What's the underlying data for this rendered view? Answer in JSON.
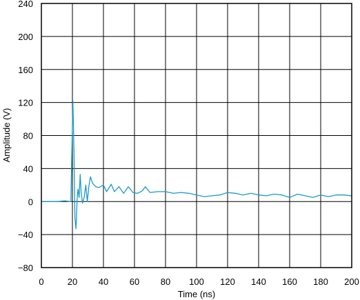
{
  "chart_data": {
    "type": "line",
    "xlabel": "Time (ns)",
    "ylabel": "Amplitude (V)",
    "xlim": [
      0,
      200
    ],
    "ylim": [
      -80,
      240
    ],
    "xticks": [
      0,
      20,
      40,
      60,
      80,
      100,
      120,
      140,
      160,
      180,
      200
    ],
    "yticks": [
      -80,
      -40,
      0,
      40,
      80,
      120,
      160,
      200,
      240
    ],
    "xtick_labels": [
      "0",
      "20",
      "40",
      "60",
      "80",
      "100",
      "120",
      "140",
      "160",
      "180",
      "200"
    ],
    "ytick_labels": [
      "−80",
      "−40",
      "0",
      "40",
      "80",
      "120",
      "160",
      "200",
      "240"
    ],
    "grid": true,
    "line_color": "#1a9ac9",
    "series": [
      {
        "x": [
          0,
          5,
          10,
          15,
          19,
          19.7,
          20.3,
          21,
          21.6,
          22.3,
          23,
          23.6,
          24.3,
          25,
          25.6,
          26.5,
          27.6,
          28.6,
          29.6,
          30.6,
          31.6,
          33,
          35,
          37,
          40,
          42,
          45,
          47,
          50,
          53,
          56,
          59,
          62,
          65,
          67,
          70,
          75,
          80,
          85,
          90,
          95,
          100,
          105,
          110,
          115,
          120,
          125,
          130,
          135,
          140,
          145,
          150,
          155,
          160,
          165,
          170,
          175,
          180,
          185,
          190,
          195,
          200
        ],
        "y": [
          0,
          0,
          0,
          1,
          0,
          65,
          122,
          60,
          -20,
          -33,
          3,
          15,
          5,
          33,
          12,
          -2,
          5,
          20,
          0,
          18,
          30,
          22,
          18,
          17,
          20,
          12,
          21,
          12,
          18,
          10,
          18,
          11,
          10,
          13,
          18,
          11,
          12,
          12,
          10,
          11,
          10,
          8,
          6,
          7,
          8,
          11,
          10,
          8,
          10,
          8,
          7,
          9,
          8,
          5,
          9,
          7,
          5,
          8,
          6,
          8,
          8,
          7
        ]
      }
    ]
  }
}
